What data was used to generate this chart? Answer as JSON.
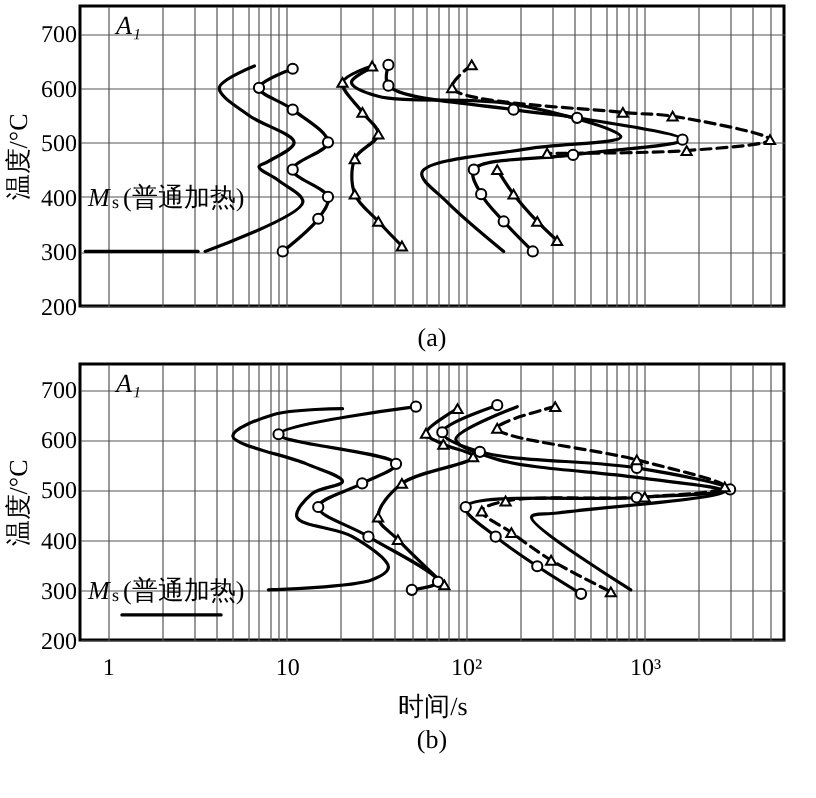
{
  "chart_data": [
    {
      "type": "line",
      "title": "(a)",
      "ylabel": "温度/°C",
      "log": "x",
      "grid": true,
      "legend": false,
      "tick_labels": "y",
      "xlim": [
        0.7,
        6000
      ],
      "ylim": [
        200,
        750
      ],
      "xticks": [
        {
          "value": 1,
          "label": null
        },
        {
          "value": 2,
          "label": null
        },
        {
          "value": 3,
          "label": null
        },
        {
          "value": 4,
          "label": null
        },
        {
          "value": 5,
          "label": null
        },
        {
          "value": 6,
          "label": null
        },
        {
          "value": 7,
          "label": null
        },
        {
          "value": 8,
          "label": null
        },
        {
          "value": 9,
          "label": null
        },
        {
          "value": 10,
          "label": null
        },
        {
          "value": 20,
          "label": null
        },
        {
          "value": 30,
          "label": null
        },
        {
          "value": 40,
          "label": null
        },
        {
          "value": 50,
          "label": null
        },
        {
          "value": 60,
          "label": null
        },
        {
          "value": 70,
          "label": null
        },
        {
          "value": 80,
          "label": null
        },
        {
          "value": 90,
          "label": null
        },
        {
          "value": 100,
          "label": null
        },
        {
          "value": 200,
          "label": null
        },
        {
          "value": 300,
          "label": null
        },
        {
          "value": 400,
          "label": null
        },
        {
          "value": 500,
          "label": null
        },
        {
          "value": 600,
          "label": null
        },
        {
          "value": 700,
          "label": null
        },
        {
          "value": 800,
          "label": null
        },
        {
          "value": 900,
          "label": null
        },
        {
          "value": 1000,
          "label": null
        },
        {
          "value": 2000,
          "label": null
        },
        {
          "value": 3000,
          "label": null
        },
        {
          "value": 4000,
          "label": null
        },
        {
          "value": 5000,
          "label": null
        }
      ],
      "yticks": [
        200,
        300,
        400,
        500,
        600,
        700
      ],
      "annotations": [
        "A₁",
        "M$_{s}$(普通加热)"
      ],
      "series": [
        {
          "color": "#000000",
          "marker": "none",
          "line_style": "solid",
          "x": [
            0.75,
            3.2
          ],
          "values": [
            300,
            300
          ]
        },
        {
          "color": "#000000",
          "marker": "none",
          "line_style": "solid",
          "x": [
            6.6,
            4.2,
            6.1,
            11,
            7.9,
            7,
            9,
            12.3,
            3.5
          ],
          "values": [
            640,
            600,
            550,
            500,
            465,
            455,
            430,
            390,
            300
          ]
        },
        {
          "color": "#000000",
          "marker": "circle",
          "line_style": "solid",
          "x": [
            10.8,
            7,
            10.8,
            17,
            10.8,
            17,
            15,
            9.5
          ],
          "values": [
            635,
            600,
            560,
            500,
            450,
            400,
            360,
            300
          ]
        },
        {
          "color": "#000000",
          "marker": "triangle",
          "line_style": "solid",
          "x": [
            30,
            20.5,
            26.5,
            32.5,
            24,
            24,
            32.5,
            44
          ],
          "values": [
            640,
            610,
            555,
            515,
            470,
            405,
            355,
            310
          ]
        },
        {
          "color": "#000000",
          "marker": "none",
          "line_style": "solid",
          "x": [
            31,
            23,
            32,
            185,
            736,
            220,
            57,
            79,
            163
          ],
          "values": [
            640,
            610,
            585,
            570,
            510,
            488,
            445,
            390,
            300
          ]
        },
        {
          "color": "#000000",
          "marker": "circle",
          "line_style": "solid",
          "x": [
            37,
            37,
            185,
            419,
            1626,
            398,
            111,
            122,
            163,
            237
          ],
          "values": [
            642,
            604,
            560,
            545,
            505,
            477,
            450,
            405,
            355,
            300
          ]
        },
        {
          "color": "#000000",
          "marker": "triangle",
          "line_style": "solid",
          "x": [
            150,
            185,
            251,
            324
          ],
          "values": [
            450,
            405,
            355,
            320
          ]
        },
        {
          "color": "#000000",
          "marker": "triangle",
          "line_style": "dashed",
          "x": [
            108,
            84,
            755,
            1432,
            5010,
            1715,
            285
          ],
          "values": [
            642,
            600,
            555,
            548,
            505,
            485,
            480
          ]
        }
      ]
    },
    {
      "type": "line",
      "title": "(b)",
      "xlabel": "时间/s",
      "ylabel": "温度/°C",
      "log": "x",
      "grid": true,
      "legend": false,
      "xlim": [
        0.7,
        6000
      ],
      "ylim": [
        200,
        750
      ],
      "xticks": [
        1,
        {
          "value": 2,
          "label": null
        },
        {
          "value": 3,
          "label": null
        },
        {
          "value": 4,
          "label": null
        },
        {
          "value": 5,
          "label": null
        },
        {
          "value": 6,
          "label": null
        },
        {
          "value": 7,
          "label": null
        },
        {
          "value": 8,
          "label": null
        },
        {
          "value": 9,
          "label": null
        },
        10,
        {
          "value": 20,
          "label": null
        },
        {
          "value": 30,
          "label": null
        },
        {
          "value": 40,
          "label": null
        },
        {
          "value": 50,
          "label": null
        },
        {
          "value": 60,
          "label": null
        },
        {
          "value": 70,
          "label": null
        },
        {
          "value": 80,
          "label": null
        },
        {
          "value": 90,
          "label": null
        },
        {
          "value": 100,
          "label": "10²"
        },
        {
          "value": 200,
          "label": null
        },
        {
          "value": 300,
          "label": null
        },
        {
          "value": 400,
          "label": null
        },
        {
          "value": 500,
          "label": null
        },
        {
          "value": 600,
          "label": null
        },
        {
          "value": 700,
          "label": null
        },
        {
          "value": 800,
          "label": null
        },
        {
          "value": 900,
          "label": null
        },
        {
          "value": 1000,
          "label": "10³"
        },
        {
          "value": 2000,
          "label": null
        },
        {
          "value": 3000,
          "label": null
        },
        {
          "value": 4000,
          "label": null
        },
        {
          "value": 5000,
          "label": null
        }
      ],
      "yticks": [
        200,
        300,
        400,
        500,
        600,
        700
      ],
      "annotations": [
        "A₁",
        "M$_{s}$(普通加热)"
      ],
      "series": [
        {
          "color": "#000000",
          "marker": "none",
          "line_style": "solid",
          "x": [
            1.2,
            4.3
          ],
          "values": [
            250,
            250
          ]
        },
        {
          "color": "#000000",
          "marker": "none",
          "line_style": "solid",
          "x": [
            20.5,
            8.4,
            5,
            12.9,
            20.5,
            13.9,
            11.4,
            23.3,
            37,
            30,
            7.9
          ],
          "values": [
            661,
            649,
            606,
            551,
            516,
            492,
            445,
            406,
            345,
            320,
            300
          ]
        },
        {
          "color": "#000000",
          "marker": "circle",
          "line_style": "solid",
          "x": [
            52.7,
            9,
            40.8,
            26.4,
            15,
            28.6,
            70,
            50
          ],
          "values": [
            665,
            610,
            551,
            512,
            465,
            406,
            316,
            300
          ]
        },
        {
          "color": "#000000",
          "marker": "triangle",
          "line_style": "solid",
          "x": [
            90,
            60,
            75,
            110,
            44,
            32.4,
            41.8,
            76
          ],
          "values": [
            661,
            612,
            590,
            565,
            512,
            445,
            400,
            310
          ]
        },
        {
          "color": "#000000",
          "marker": "circle",
          "line_style": "solid",
          "x": [
            150,
            74,
            120,
            903,
            3000,
            903,
            100,
            147,
            251,
            441
          ],
          "values": [
            668,
            614,
            575,
            543,
            500,
            484,
            465,
            406,
            347,
            292
          ]
        },
        {
          "color": "#000000",
          "marker": "none",
          "line_style": "solid",
          "x": [
            194,
            88,
            150,
            903,
            2780,
            324,
            233,
            836
          ],
          "values": [
            665,
            600,
            560,
            524,
            496,
            453,
            445,
            300
          ]
        },
        {
          "color": "#000000",
          "marker": "triangle",
          "line_style": "dashed",
          "x": [
            316,
            150,
            903,
            2800,
            1000,
            167,
            123,
            180,
            300,
            647
          ],
          "values": [
            665,
            622,
            559,
            505,
            485,
            477,
            457,
            414,
            359,
            296
          ]
        }
      ]
    }
  ]
}
